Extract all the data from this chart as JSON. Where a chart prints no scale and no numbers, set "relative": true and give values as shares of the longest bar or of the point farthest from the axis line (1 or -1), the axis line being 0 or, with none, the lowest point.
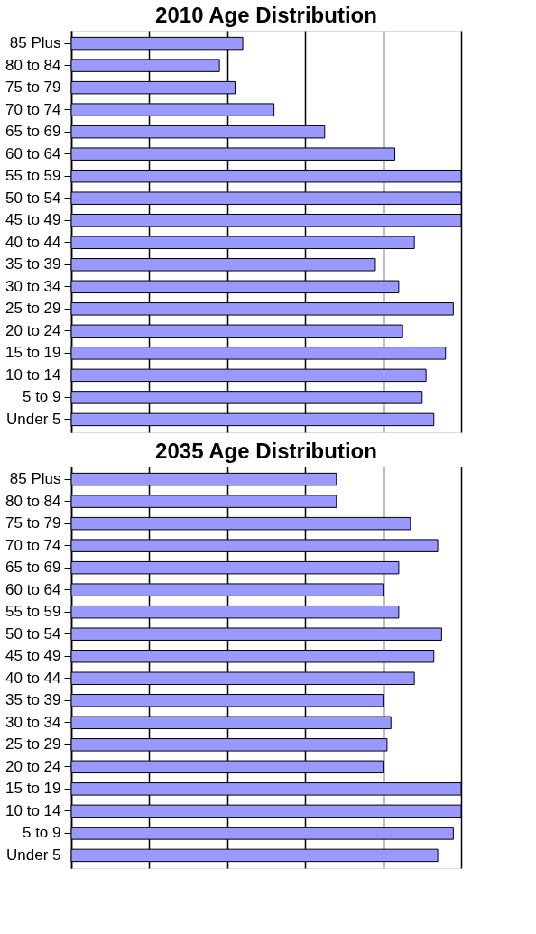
{
  "chart_data": [
    {
      "type": "bar",
      "orientation": "horizontal",
      "relative": true,
      "title": "2010 Age Distribution",
      "categories": [
        "85 Plus",
        "80 to 84",
        "75 to 79",
        "70 to 74",
        "65 to 69",
        "60 to 64",
        "55 to 59",
        "50 to 54",
        "45 to 49",
        "40 to 44",
        "35 to 39",
        "30 to 34",
        "25 to 29",
        "20 to 24",
        "15 to 19",
        "10 to 14",
        "5 to 9",
        "Under 5"
      ],
      "values": [
        0.44,
        0.38,
        0.42,
        0.52,
        0.65,
        0.83,
        1,
        1,
        1,
        0.88,
        0.78,
        0.84,
        0.98,
        0.85,
        0.96,
        0.91,
        0.9,
        0.93
      ],
      "color": "#9999ff",
      "grid": "x",
      "tick_labels": "y"
    },
    {
      "type": "bar",
      "orientation": "horizontal",
      "relative": true,
      "title": "2035 Age Distribution",
      "categories": [
        "85 Plus",
        "80 to 84",
        "75 to 79",
        "70 to 74",
        "65 to 69",
        "60 to 64",
        "55 to 59",
        "50 to 54",
        "45 to 49",
        "40 to 44",
        "35 to 39",
        "30 to 34",
        "25 to 29",
        "20 to 24",
        "15 to 19",
        "10 to 14",
        "5 to 9",
        "Under 5"
      ],
      "values": [
        0.68,
        0.68,
        0.87,
        0.94,
        0.84,
        0.8,
        0.84,
        0.95,
        0.93,
        0.88,
        0.8,
        0.82,
        0.81,
        0.8,
        1,
        1,
        0.98,
        0.94
      ],
      "color": "#9999ff",
      "grid": "x",
      "tick_labels": "y"
    }
  ]
}
